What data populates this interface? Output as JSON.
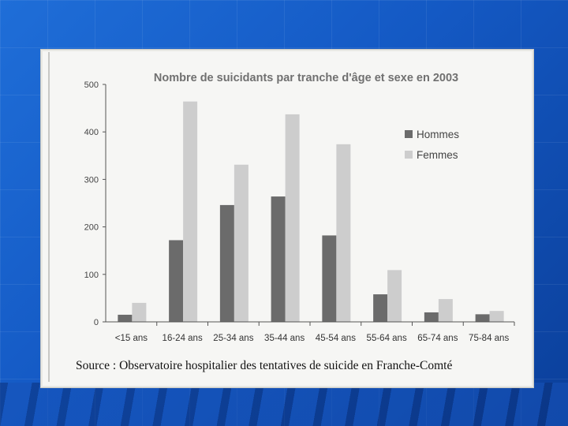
{
  "chart_data": {
    "type": "bar",
    "title": "Nombre de suicidants par tranche d'âge et sexe en 2003",
    "categories": [
      "<15 ans",
      "16-24 ans",
      "25-34 ans",
      "35-44 ans",
      "45-54 ans",
      "55-64 ans",
      "65-74 ans",
      "75-84 ans"
    ],
    "series": [
      {
        "name": "Hommes",
        "color": "#6b6b6b",
        "values": [
          15,
          172,
          246,
          264,
          182,
          58,
          20,
          16
        ]
      },
      {
        "name": "Femmes",
        "color": "#cdcdcd",
        "values": [
          40,
          464,
          331,
          437,
          374,
          109,
          48,
          23
        ]
      }
    ],
    "ylim": [
      0,
      500
    ],
    "yticks": [
      "0",
      "100",
      "200",
      "300",
      "400",
      "500"
    ],
    "xlabel": "",
    "ylabel": "",
    "legend": "right",
    "source": "Source : Observatoire hospitalier des tentatives de suicide en Franche-Comté"
  }
}
